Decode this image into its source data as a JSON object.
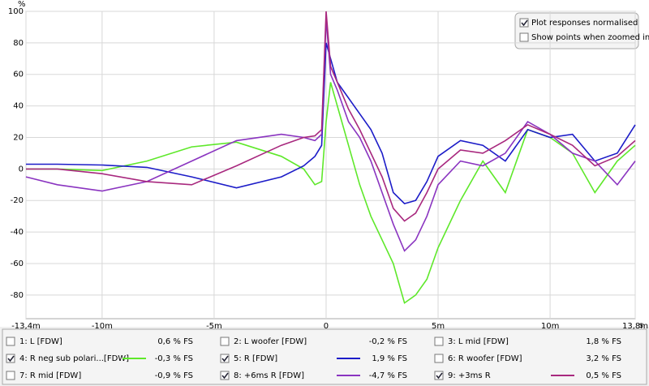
{
  "chart_data": {
    "type": "line",
    "ylabel": "%",
    "xlabel": "s",
    "xlim": [
      -13.4,
      13.8
    ],
    "ylim": [
      -95,
      100
    ],
    "xticks": [
      {
        "value": -13.4,
        "label": "-13,4m"
      },
      {
        "value": -10,
        "label": "-10m"
      },
      {
        "value": -5,
        "label": "-5m"
      },
      0,
      {
        "value": 5,
        "label": "5m"
      },
      {
        "value": 10,
        "label": "10m"
      },
      {
        "value": 13.8,
        "label": "13,8m"
      }
    ],
    "yticks": [
      100,
      80,
      60,
      40,
      20,
      0,
      -20,
      -40,
      -60,
      -80
    ],
    "grid": true,
    "x": [
      -13.4,
      -12,
      -10,
      -8,
      -6,
      -4,
      -2,
      -1,
      -0.5,
      -0.2,
      0,
      0.2,
      0.5,
      1,
      1.5,
      2,
      2.5,
      3,
      3.5,
      4,
      4.5,
      5,
      6,
      7,
      8,
      9,
      10,
      11,
      12,
      13,
      13.8
    ],
    "series": [
      {
        "name": "1: L [FDW]",
        "color": "#d02828",
        "checked": false,
        "readout": "0,6 % FS"
      },
      {
        "name": "2: L woofer [FDW]",
        "color": "#2e9e2e",
        "checked": false,
        "readout": "-0,2 % FS"
      },
      {
        "name": "3: L mid [FDW]",
        "color": "#4848c8",
        "checked": false,
        "readout": "1,8 % FS"
      },
      {
        "name": "4: R neg sub polari...[FDW]",
        "color": "#5ee82a",
        "checked": true,
        "readout": "-0,3 % FS",
        "values": [
          0,
          0,
          -1,
          5,
          14,
          17,
          8,
          0,
          -10,
          -8,
          30,
          55,
          40,
          15,
          -10,
          -30,
          -45,
          -60,
          -85,
          -80,
          -70,
          -50,
          -20,
          5,
          -15,
          25,
          20,
          10,
          -15,
          5,
          15
        ]
      },
      {
        "name": "5: R [FDW]",
        "color": "#1c1cc8",
        "checked": true,
        "readout": "1,9 % FS",
        "values": [
          3,
          3,
          2.5,
          1,
          -5,
          -12,
          -5,
          2,
          8,
          15,
          80,
          70,
          55,
          45,
          35,
          25,
          10,
          -15,
          -22,
          -20,
          -8,
          8,
          18,
          15,
          5,
          25,
          20,
          22,
          5,
          10,
          28
        ]
      },
      {
        "name": "6: R woofer [FDW]",
        "color": "#c08a10",
        "checked": false,
        "readout": "3,2 % FS"
      },
      {
        "name": "7: R mid [FDW]",
        "color": "#2e9e3e",
        "checked": false,
        "readout": "-0,9 % FS"
      },
      {
        "name": "8: +6ms R [FDW]",
        "color": "#8a34c0",
        "checked": true,
        "readout": "-4,7 % FS",
        "values": [
          -5,
          -10,
          -14,
          -8,
          5,
          18,
          22,
          20,
          18,
          22,
          95,
          60,
          50,
          30,
          20,
          5,
          -15,
          -35,
          -52,
          -45,
          -30,
          -10,
          5,
          2,
          10,
          30,
          22,
          10,
          5,
          -10,
          5
        ]
      },
      {
        "name": "9: +3ms R",
        "color": "#a8287e",
        "checked": true,
        "readout": "0,5 % FS",
        "values": [
          0,
          0,
          -3,
          -8,
          -10,
          2,
          15,
          20,
          21,
          25,
          100,
          65,
          55,
          38,
          25,
          10,
          -5,
          -25,
          -33,
          -28,
          -15,
          0,
          12,
          10,
          18,
          28,
          22,
          15,
          2,
          8,
          18
        ]
      }
    ]
  },
  "options": [
    {
      "label": "Plot responses normalised",
      "checked": true
    },
    {
      "label": "Show points when zoomed in",
      "checked": false
    }
  ]
}
